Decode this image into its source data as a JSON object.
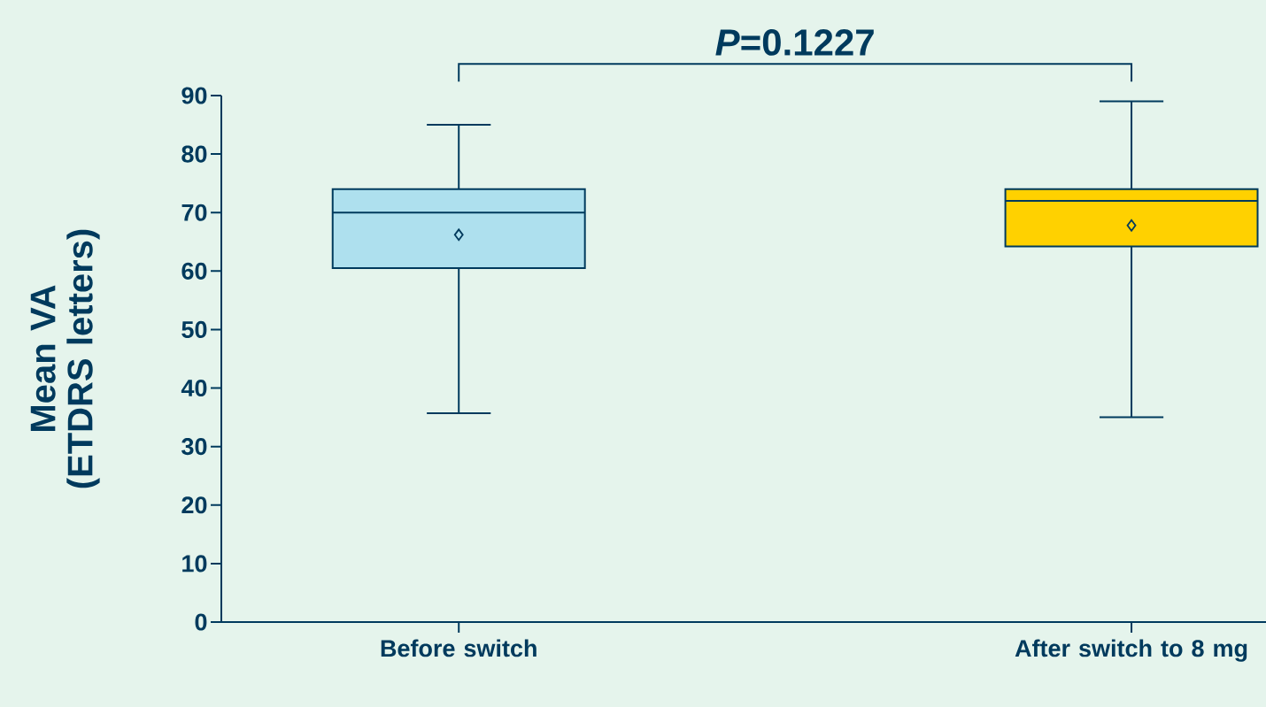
{
  "chart_data": {
    "type": "box",
    "ylabel": "Mean VA (ETDRS letters)",
    "categories": [
      "Before switch",
      "After switch to 8 mg"
    ],
    "boxes": [
      {
        "low": 35.7,
        "q1": 60.5,
        "median": 70,
        "q3": 74,
        "high": 85,
        "mean": 66.2
      },
      {
        "low": 35,
        "q1": 64.2,
        "median": 72,
        "q3": 74,
        "high": 89,
        "mean": 67.8
      }
    ],
    "colors": [
      "#aee0ee",
      "#ffd100"
    ],
    "ylim": [
      0,
      90
    ],
    "yticks": [
      0,
      10,
      20,
      30,
      40,
      50,
      60,
      70,
      80,
      90
    ],
    "annotations": [
      "*P*=0.1227"
    ]
  }
}
